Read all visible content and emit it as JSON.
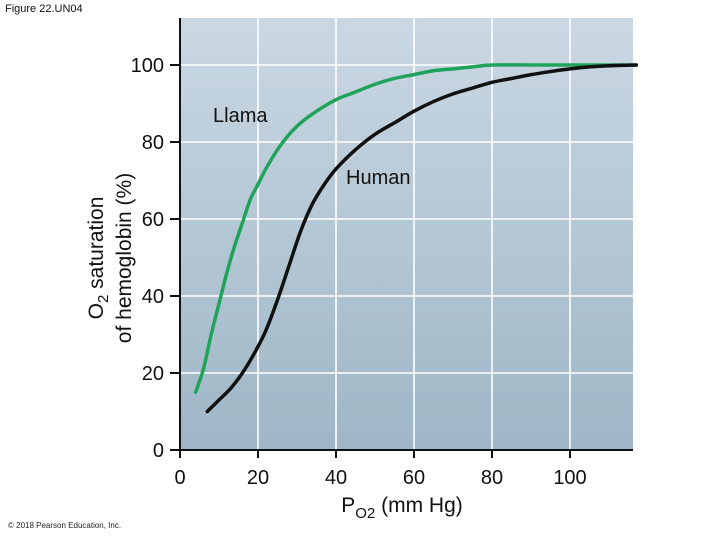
{
  "figure_label": "Figure 22.UN04",
  "copyright": "© 2018 Pearson Education, Inc.",
  "colors": {
    "plot_bg_top": "#cad8e3",
    "plot_bg_bottom": "#9eb6c6",
    "grid": "#ffffff",
    "llama": "#1fa35a",
    "human": "#111111"
  },
  "chart_data": {
    "type": "line",
    "title": "",
    "xlabel": "P",
    "xlabel_sub": "O2",
    "xlabel_suffix": " (mm Hg)",
    "ylabel_line1_pre": "O",
    "ylabel_line1_sub": "2",
    "ylabel_line1_post": " saturation",
    "ylabel_line2": "of hemoglobin (%)",
    "xlim": [
      0,
      118
    ],
    "ylim": [
      0,
      100
    ],
    "x_ticks": [
      0,
      20,
      40,
      60,
      80,
      100
    ],
    "y_ticks": [
      0,
      20,
      40,
      60,
      80,
      100
    ],
    "grid": true,
    "series": [
      {
        "name": "Llama",
        "x": [
          4,
          6,
          8,
          10,
          12,
          14,
          16,
          18,
          20,
          22,
          25,
          28,
          31,
          35,
          40,
          45,
          50,
          55,
          60,
          65,
          70,
          75,
          80,
          90,
          100,
          110,
          117
        ],
        "y": [
          15,
          21,
          30,
          38,
          46,
          53,
          59,
          65,
          69,
          73,
          78,
          82,
          85,
          88,
          91,
          93,
          95,
          96.5,
          97.5,
          98.5,
          99,
          99.5,
          100,
          100,
          100,
          100,
          100
        ]
      },
      {
        "name": "Human",
        "x": [
          7,
          10,
          13,
          16,
          19,
          22,
          25,
          28,
          31,
          34,
          37,
          40,
          45,
          50,
          55,
          60,
          65,
          70,
          75,
          80,
          85,
          90,
          95,
          100,
          105,
          110,
          117
        ],
        "y": [
          10,
          13,
          16,
          20,
          25,
          31,
          39,
          48,
          57,
          64,
          69,
          73,
          78,
          82,
          85,
          88,
          90.5,
          92.5,
          94,
          95.5,
          96.5,
          97.5,
          98.3,
          99,
          99.5,
          99.8,
          100
        ]
      }
    ]
  }
}
